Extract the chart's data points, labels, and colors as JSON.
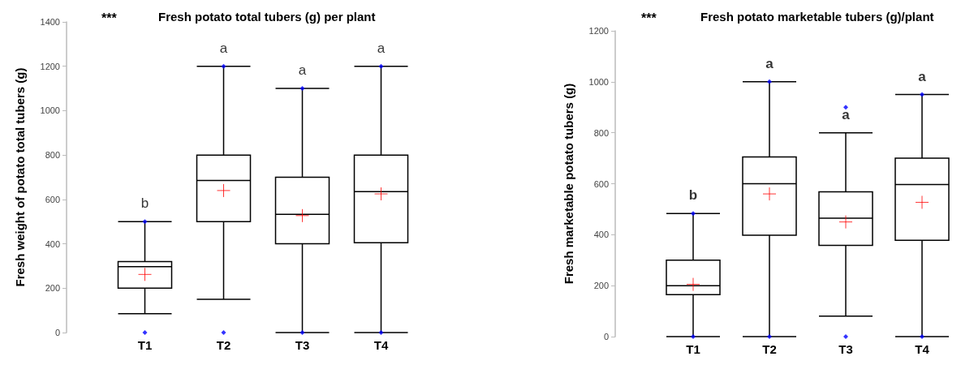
{
  "chart_data": [
    {
      "type": "box",
      "title": "Fresh potato total tubers (g) per plant",
      "ylabel": "Fresh weight of potato total tubers (g)",
      "categories": [
        "T1",
        "T2",
        "T3",
        "T4"
      ],
      "ylim": [
        0,
        1400
      ],
      "yticks": [
        0,
        200,
        400,
        600,
        800,
        1000,
        1200,
        1400
      ],
      "grid": false,
      "series": [
        {
          "color": "#000000",
          "boxes": [
            {
              "low": 85,
              "q1": 200,
              "median": 297,
              "q3": 320,
              "high": 500,
              "mean": 262,
              "outliers": [
                0,
                500
              ]
            },
            {
              "low": 150,
              "q1": 500,
              "median": 685,
              "q3": 800,
              "high": 1200,
              "mean": 640,
              "outliers": [
                0,
                1200
              ]
            },
            {
              "low": 0,
              "q1": 400,
              "median": 533,
              "q3": 700,
              "high": 1100,
              "mean": 527,
              "outliers": [
                0,
                1100
              ]
            },
            {
              "low": 0,
              "q1": 405,
              "median": 635,
              "q3": 800,
              "high": 1200,
              "mean": 625,
              "outliers": [
                0,
                1200
              ]
            }
          ]
        }
      ],
      "annotations": [
        "***",
        "b",
        "a",
        "a",
        "a"
      ]
    },
    {
      "type": "box",
      "title": "Fresh potato marketable tubers (g)/plant",
      "ylabel": "Fresh marketable potato tubers (g)",
      "categories": [
        "T1",
        "T2",
        "T3",
        "T4"
      ],
      "ylim": [
        0,
        1200
      ],
      "yticks": [
        0,
        200,
        400,
        600,
        800,
        1000,
        1200
      ],
      "grid": false,
      "series": [
        {
          "color": "#000000",
          "boxes": [
            {
              "low": 0,
              "q1": 165,
              "median": 200,
              "q3": 300,
              "high": 483,
              "mean": 205,
              "outliers": [
                0,
                483
              ]
            },
            {
              "low": 0,
              "q1": 398,
              "median": 600,
              "q3": 705,
              "high": 1000,
              "mean": 560,
              "outliers": [
                0,
                1000
              ]
            },
            {
              "low": 80,
              "q1": 358,
              "median": 465,
              "q3": 568,
              "high": 800,
              "mean": 450,
              "outliers": [
                0,
                900
              ]
            },
            {
              "low": 0,
              "q1": 378,
              "median": 597,
              "q3": 700,
              "high": 950,
              "mean": 527,
              "outliers": [
                0,
                950
              ]
            }
          ]
        }
      ],
      "annotations": [
        "***",
        "b",
        "a",
        "a",
        "a"
      ]
    }
  ]
}
